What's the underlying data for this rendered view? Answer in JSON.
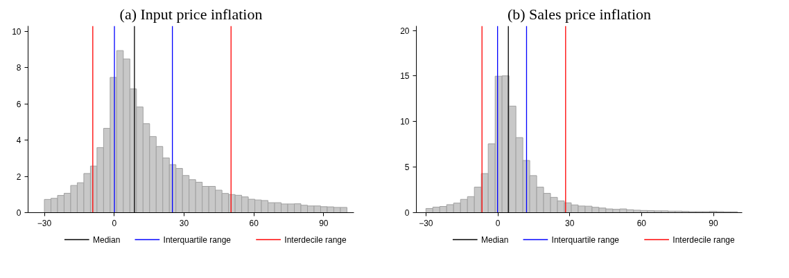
{
  "chart_data": [
    {
      "type": "histogram",
      "title": "(a) Input price inflation",
      "bins": [
        -30,
        -27.174,
        -24.348,
        -21.522,
        -18.696,
        -15.87,
        -13.043,
        -10.217,
        -7.391,
        -4.565,
        -1.739,
        1.087,
        3.913,
        6.739,
        9.565,
        12.391,
        15.217,
        18.043,
        20.87,
        23.696,
        26.522,
        29.348,
        32.174,
        35,
        37.826,
        40.652,
        43.478,
        46.304,
        49.13,
        51.957,
        54.783,
        57.609,
        60.435,
        63.261,
        66.087,
        68.913,
        71.739,
        74.565,
        77.391,
        80.217,
        83.043,
        85.87,
        88.696,
        91.522,
        94.348,
        97.174,
        100
      ],
      "values": [
        0.73,
        0.79,
        0.95,
        1.07,
        1.5,
        1.65,
        2.16,
        2.57,
        3.59,
        4.65,
        7.46,
        8.94,
        8.48,
        6.83,
        5.83,
        4.91,
        4.2,
        3.65,
        3.02,
        2.65,
        2.44,
        2.05,
        1.82,
        1.68,
        1.45,
        1.45,
        1.24,
        1.06,
        1.0,
        0.96,
        0.87,
        0.74,
        0.7,
        0.67,
        0.55,
        0.55,
        0.48,
        0.48,
        0.49,
        0.41,
        0.37,
        0.37,
        0.33,
        0.32,
        0.29,
        0.29
      ],
      "color": "#c8c8c8",
      "xlim": [
        -37,
        103
      ],
      "ylim": [
        0,
        10.3
      ],
      "xticks": [
        -30,
        0,
        30,
        60,
        90
      ],
      "yticks": [
        0,
        2,
        4,
        6,
        8,
        10
      ],
      "grid": false,
      "legend": "bottom",
      "ref_lines": [
        {
          "axis": "x",
          "value": 8.7,
          "label": "Median",
          "color": "#000000"
        },
        {
          "axis": "x",
          "value": 0.1,
          "label": "Interquartile range",
          "color": "#0000ff"
        },
        {
          "axis": "x",
          "value": 25.0,
          "label": null,
          "color": "#0000ff"
        },
        {
          "axis": "x",
          "value": -9.2,
          "label": "Interdecile range",
          "color": "#ff0000"
        },
        {
          "axis": "x",
          "value": 50.2,
          "label": null,
          "color": "#ff0000"
        }
      ]
    },
    {
      "type": "histogram",
      "title": "(b) Sales price inflation",
      "bins": [
        -30,
        -27.111,
        -24.222,
        -21.333,
        -18.444,
        -15.556,
        -12.667,
        -9.778,
        -6.889,
        -4.0,
        -1.111,
        1.778,
        4.667,
        7.556,
        10.444,
        13.333,
        16.222,
        19.111,
        22.0,
        24.889,
        27.778,
        30.667,
        33.556,
        36.444,
        39.333,
        42.222,
        45.111,
        48.0,
        50.889,
        53.778,
        56.667,
        59.556,
        62.444,
        65.333,
        68.222,
        71.111,
        74.0,
        76.889,
        79.778,
        82.667,
        85.556,
        88.444,
        91.333,
        94.222,
        97.111,
        100
      ],
      "values": [
        0.46,
        0.61,
        0.68,
        0.88,
        1.05,
        1.46,
        1.76,
        2.8,
        4.29,
        7.56,
        14.98,
        15.02,
        11.7,
        8.24,
        5.73,
        4.07,
        2.8,
        2.12,
        1.68,
        1.29,
        1.08,
        0.85,
        0.73,
        0.71,
        0.59,
        0.51,
        0.41,
        0.37,
        0.41,
        0.32,
        0.27,
        0.24,
        0.22,
        0.2,
        0.2,
        0.17,
        0.17,
        0.15,
        0.12,
        0.12,
        0.12,
        0.15,
        0.12,
        0.1,
        0.1
      ],
      "color": "#c8c8c8",
      "xlim": [
        -34,
        102
      ],
      "ylim": [
        0,
        20.5
      ],
      "xticks": [
        -30,
        0,
        30,
        60,
        90
      ],
      "yticks": [
        0,
        5,
        10,
        15,
        20
      ],
      "grid": false,
      "legend": "bottom",
      "ref_lines": [
        {
          "axis": "x",
          "value": 4.4,
          "label": "Median",
          "color": "#000000"
        },
        {
          "axis": "x",
          "value": -0.1,
          "label": "Interquartile range",
          "color": "#0000ff"
        },
        {
          "axis": "x",
          "value": 12.0,
          "label": null,
          "color": "#0000ff"
        },
        {
          "axis": "x",
          "value": -6.6,
          "label": "Interdecile range",
          "color": "#ff0000"
        },
        {
          "axis": "x",
          "value": 28.3,
          "label": null,
          "color": "#ff0000"
        }
      ]
    }
  ]
}
